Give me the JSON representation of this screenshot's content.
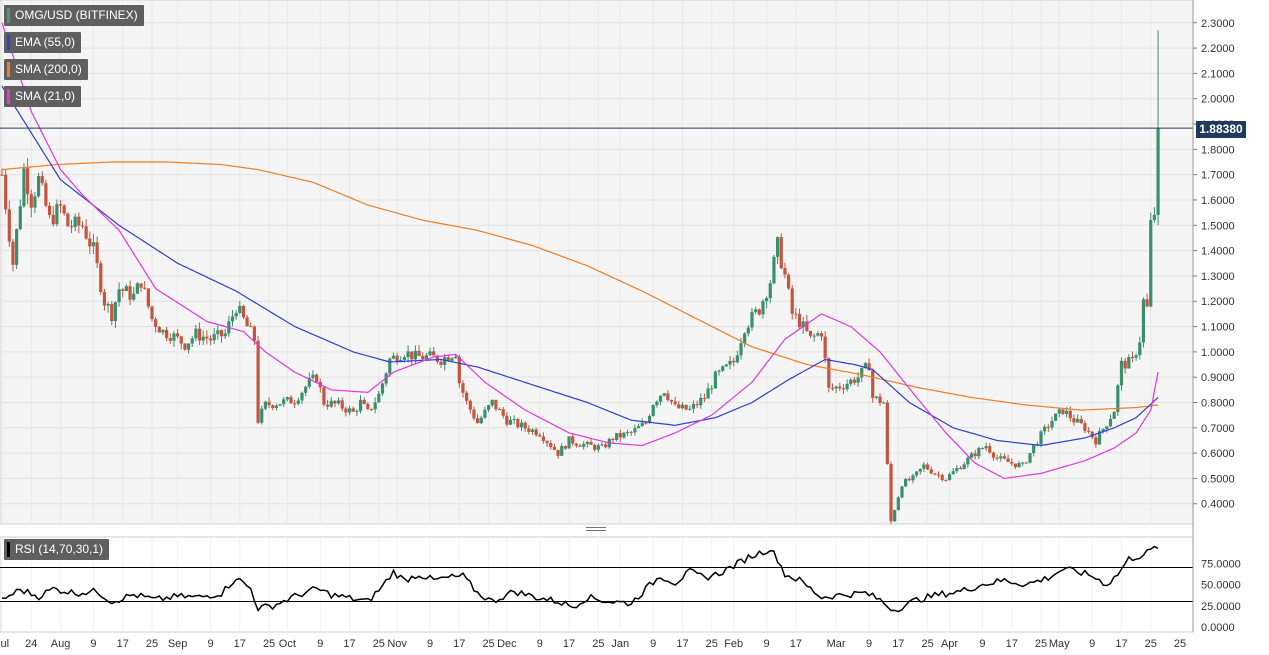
{
  "symbol_title": "OMG/USD (BITFINEX)",
  "indicators": [
    {
      "label": "EMA (55,0)",
      "color": "#2b3fd6"
    },
    {
      "label": "SMA (200,0)",
      "color": "#f07c20"
    },
    {
      "label": "SMA (21,0)",
      "color": "#e633e6"
    }
  ],
  "rsi_label": "RSI (14,70,30,1)",
  "last_price_label": "1.88380",
  "colors": {
    "up_candle": "#3a8f6c",
    "down_candle": "#c5543f",
    "rsi_line": "#000000",
    "price_line": "#1f3a5f"
  },
  "chart_data": [
    {
      "type": "candlestick",
      "title": "OMG/USD (BITFINEX)",
      "ylim": [
        0.32,
        2.39
      ],
      "y_ticks": [
        "0.4000",
        "0.5000",
        "0.6000",
        "0.7000",
        "0.8000",
        "0.9000",
        "1.0000",
        "1.1000",
        "1.2000",
        "1.3000",
        "1.4000",
        "1.5000",
        "1.6000",
        "1.7000",
        "1.8000",
        "1.9000",
        "2.0000",
        "2.1000",
        "2.2000",
        "2.3000"
      ],
      "y_tick_values": [
        0.4,
        0.5,
        0.6,
        0.7,
        0.8,
        0.9,
        1.0,
        1.1,
        1.2,
        1.3,
        1.4,
        1.5,
        1.6,
        1.7,
        1.8,
        1.9,
        2.0,
        2.1,
        2.2,
        2.3
      ],
      "x_tick_labels": [
        "Jul",
        "24",
        "Aug",
        "9",
        "17",
        "25",
        "Sep",
        "9",
        "17",
        "25",
        "Oct",
        "9",
        "17",
        "25",
        "Nov",
        "9",
        "17",
        "25",
        "Dec",
        "9",
        "17",
        "25",
        "Jan",
        "9",
        "17",
        "25",
        "Feb",
        "9",
        "17",
        "Mar",
        "9",
        "17",
        "25",
        "Apr",
        "9",
        "17",
        "25",
        "May",
        "9",
        "17",
        "25"
      ],
      "x_tick_days": [
        0,
        8,
        16,
        25,
        33,
        41,
        48,
        57,
        65,
        73,
        78,
        87,
        95,
        103,
        108,
        117,
        125,
        133,
        138,
        147,
        155,
        163,
        169,
        178,
        186,
        194,
        200,
        209,
        217,
        228,
        237,
        245,
        253,
        259,
        268,
        276,
        284,
        289,
        298,
        306,
        314
      ],
      "last_price": 1.8838,
      "close_anchors": [
        [
          0,
          1.7
        ],
        [
          3,
          1.35
        ],
        [
          6,
          1.72
        ],
        [
          8,
          1.6
        ],
        [
          10,
          1.68
        ],
        [
          13,
          1.52
        ],
        [
          16,
          1.57
        ],
        [
          18,
          1.5
        ],
        [
          22,
          1.5
        ],
        [
          25,
          1.4
        ],
        [
          28,
          1.2
        ],
        [
          30,
          1.15
        ],
        [
          32,
          1.25
        ],
        [
          36,
          1.22
        ],
        [
          38,
          1.28
        ],
        [
          41,
          1.13
        ],
        [
          44,
          1.08
        ],
        [
          46,
          1.07
        ],
        [
          50,
          1.03
        ],
        [
          53,
          1.07
        ],
        [
          57,
          1.05
        ],
        [
          61,
          1.07
        ],
        [
          64,
          1.18
        ],
        [
          67,
          1.1
        ],
        [
          69,
          1.05
        ],
        [
          70,
          0.73
        ],
        [
          72,
          0.79
        ],
        [
          76,
          0.8
        ],
        [
          80,
          0.81
        ],
        [
          84,
          0.88
        ],
        [
          86,
          0.9
        ],
        [
          88,
          0.8
        ],
        [
          92,
          0.79
        ],
        [
          96,
          0.76
        ],
        [
          98,
          0.8
        ],
        [
          100,
          0.76
        ],
        [
          103,
          0.83
        ],
        [
          106,
          0.97
        ],
        [
          110,
          1.0
        ],
        [
          113,
          0.98
        ],
        [
          117,
          0.98
        ],
        [
          120,
          0.97
        ],
        [
          124,
          1.0
        ],
        [
          125,
          0.88
        ],
        [
          127,
          0.8
        ],
        [
          130,
          0.72
        ],
        [
          134,
          0.8
        ],
        [
          138,
          0.73
        ],
        [
          143,
          0.7
        ],
        [
          147,
          0.68
        ],
        [
          152,
          0.6
        ],
        [
          155,
          0.65
        ],
        [
          160,
          0.63
        ],
        [
          164,
          0.62
        ],
        [
          167,
          0.66
        ],
        [
          172,
          0.68
        ],
        [
          176,
          0.72
        ],
        [
          178,
          0.8
        ],
        [
          181,
          0.85
        ],
        [
          184,
          0.78
        ],
        [
          188,
          0.77
        ],
        [
          192,
          0.82
        ],
        [
          195,
          0.9
        ],
        [
          200,
          0.96
        ],
        [
          203,
          1.1
        ],
        [
          207,
          1.17
        ],
        [
          210,
          1.28
        ],
        [
          212,
          1.42
        ],
        [
          214,
          1.3
        ],
        [
          216,
          1.15
        ],
        [
          218,
          1.12
        ],
        [
          221,
          1.05
        ],
        [
          224,
          1.08
        ],
        [
          226,
          0.85
        ],
        [
          230,
          0.87
        ],
        [
          234,
          0.9
        ],
        [
          237,
          0.95
        ],
        [
          238,
          0.82
        ],
        [
          241,
          0.8
        ],
        [
          242,
          0.55
        ],
        [
          243,
          0.33
        ],
        [
          246,
          0.48
        ],
        [
          249,
          0.5
        ],
        [
          252,
          0.55
        ],
        [
          255,
          0.52
        ],
        [
          258,
          0.5
        ],
        [
          262,
          0.55
        ],
        [
          266,
          0.6
        ],
        [
          269,
          0.63
        ],
        [
          272,
          0.58
        ],
        [
          276,
          0.56
        ],
        [
          279,
          0.55
        ],
        [
          283,
          0.65
        ],
        [
          287,
          0.73
        ],
        [
          290,
          0.77
        ],
        [
          293,
          0.73
        ],
        [
          296,
          0.7
        ],
        [
          299,
          0.65
        ],
        [
          302,
          0.72
        ],
        [
          304,
          0.77
        ],
        [
          306,
          0.95
        ],
        [
          309,
          0.96
        ],
        [
          311,
          1.05
        ],
        [
          312,
          1.2
        ],
        [
          313,
          1.17
        ],
        [
          314,
          1.5
        ],
        [
          315,
          1.55
        ],
        [
          316,
          1.88
        ]
      ],
      "ema55_anchors": [
        [
          0,
          2.05
        ],
        [
          16,
          1.68
        ],
        [
          32,
          1.5
        ],
        [
          48,
          1.35
        ],
        [
          64,
          1.24
        ],
        [
          80,
          1.1
        ],
        [
          96,
          1.0
        ],
        [
          106,
          0.96
        ],
        [
          120,
          0.97
        ],
        [
          130,
          0.94
        ],
        [
          145,
          0.87
        ],
        [
          160,
          0.8
        ],
        [
          172,
          0.73
        ],
        [
          184,
          0.71
        ],
        [
          195,
          0.74
        ],
        [
          205,
          0.8
        ],
        [
          215,
          0.89
        ],
        [
          225,
          0.97
        ],
        [
          233,
          0.95
        ],
        [
          238,
          0.93
        ],
        [
          248,
          0.8
        ],
        [
          260,
          0.7
        ],
        [
          272,
          0.65
        ],
        [
          284,
          0.63
        ],
        [
          296,
          0.66
        ],
        [
          304,
          0.7
        ],
        [
          310,
          0.74
        ],
        [
          316,
          0.82
        ]
      ],
      "sma200_anchors": [
        [
          0,
          1.72
        ],
        [
          15,
          1.74
        ],
        [
          30,
          1.75
        ],
        [
          45,
          1.75
        ],
        [
          60,
          1.74
        ],
        [
          70,
          1.72
        ],
        [
          85,
          1.67
        ],
        [
          100,
          1.58
        ],
        [
          115,
          1.52
        ],
        [
          130,
          1.48
        ],
        [
          145,
          1.42
        ],
        [
          160,
          1.34
        ],
        [
          175,
          1.24
        ],
        [
          190,
          1.13
        ],
        [
          205,
          1.02
        ],
        [
          220,
          0.95
        ],
        [
          235,
          0.91
        ],
        [
          250,
          0.86
        ],
        [
          265,
          0.82
        ],
        [
          280,
          0.79
        ],
        [
          295,
          0.77
        ],
        [
          310,
          0.78
        ],
        [
          316,
          0.79
        ]
      ],
      "sma21_anchors": [
        [
          0,
          2.3
        ],
        [
          8,
          1.95
        ],
        [
          16,
          1.72
        ],
        [
          22,
          1.62
        ],
        [
          32,
          1.48
        ],
        [
          42,
          1.25
        ],
        [
          56,
          1.12
        ],
        [
          66,
          1.08
        ],
        [
          72,
          1.0
        ],
        [
          80,
          0.92
        ],
        [
          90,
          0.85
        ],
        [
          100,
          0.84
        ],
        [
          107,
          0.92
        ],
        [
          118,
          0.98
        ],
        [
          124,
          0.99
        ],
        [
          132,
          0.88
        ],
        [
          143,
          0.77
        ],
        [
          155,
          0.68
        ],
        [
          166,
          0.64
        ],
        [
          175,
          0.63
        ],
        [
          184,
          0.68
        ],
        [
          194,
          0.75
        ],
        [
          205,
          0.88
        ],
        [
          214,
          1.05
        ],
        [
          224,
          1.15
        ],
        [
          232,
          1.1
        ],
        [
          240,
          1.0
        ],
        [
          250,
          0.82
        ],
        [
          258,
          0.68
        ],
        [
          266,
          0.56
        ],
        [
          274,
          0.5
        ],
        [
          284,
          0.52
        ],
        [
          296,
          0.57
        ],
        [
          304,
          0.62
        ],
        [
          310,
          0.68
        ],
        [
          314,
          0.77
        ],
        [
          316,
          0.92
        ]
      ],
      "rsi_ylim": [
        0,
        100
      ],
      "rsi_levels": [
        70,
        30
      ],
      "rsi_y_ticks": [
        "0.0000",
        "25.0000",
        "50.0000",
        "75.0000"
      ],
      "rsi_y_tick_values": [
        0,
        25,
        50,
        75
      ],
      "rsi_anchors": [
        [
          0,
          32
        ],
        [
          5,
          44
        ],
        [
          10,
          36
        ],
        [
          14,
          45
        ],
        [
          20,
          40
        ],
        [
          26,
          42
        ],
        [
          30,
          30
        ],
        [
          36,
          38
        ],
        [
          42,
          32
        ],
        [
          48,
          36
        ],
        [
          54,
          35
        ],
        [
          60,
          40
        ],
        [
          64,
          58
        ],
        [
          68,
          45
        ],
        [
          70,
          22
        ],
        [
          74,
          25
        ],
        [
          80,
          36
        ],
        [
          86,
          45
        ],
        [
          90,
          38
        ],
        [
          96,
          33
        ],
        [
          100,
          30
        ],
        [
          104,
          48
        ],
        [
          107,
          65
        ],
        [
          110,
          55
        ],
        [
          114,
          62
        ],
        [
          118,
          55
        ],
        [
          122,
          58
        ],
        [
          126,
          60
        ],
        [
          130,
          40
        ],
        [
          134,
          30
        ],
        [
          140,
          42
        ],
        [
          146,
          35
        ],
        [
          152,
          30
        ],
        [
          156,
          24
        ],
        [
          160,
          35
        ],
        [
          166,
          30
        ],
        [
          172,
          28
        ],
        [
          176,
          45
        ],
        [
          180,
          60
        ],
        [
          184,
          52
        ],
        [
          188,
          65
        ],
        [
          192,
          58
        ],
        [
          196,
          63
        ],
        [
          200,
          72
        ],
        [
          204,
          82
        ],
        [
          210,
          92
        ],
        [
          212,
          80
        ],
        [
          214,
          62
        ],
        [
          218,
          55
        ],
        [
          224,
          35
        ],
        [
          230,
          38
        ],
        [
          236,
          40
        ],
        [
          240,
          32
        ],
        [
          242,
          25
        ],
        [
          244,
          20
        ],
        [
          250,
          32
        ],
        [
          256,
          38
        ],
        [
          262,
          42
        ],
        [
          268,
          50
        ],
        [
          274,
          55
        ],
        [
          280,
          50
        ],
        [
          286,
          58
        ],
        [
          290,
          68
        ],
        [
          294,
          65
        ],
        [
          298,
          60
        ],
        [
          302,
          50
        ],
        [
          305,
          62
        ],
        [
          308,
          80
        ],
        [
          312,
          85
        ],
        [
          314,
          90
        ],
        [
          316,
          95
        ]
      ]
    }
  ]
}
